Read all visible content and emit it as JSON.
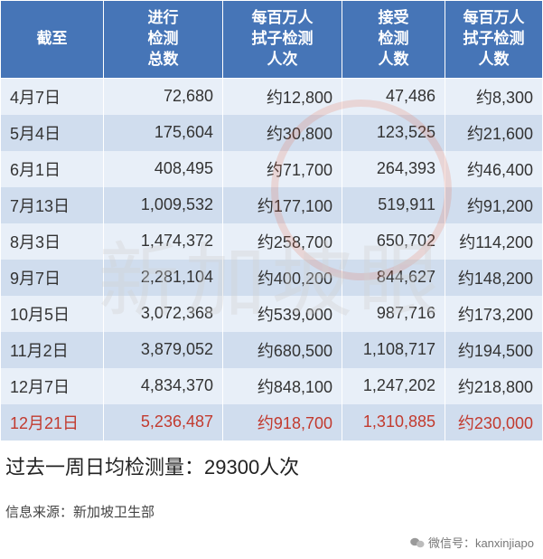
{
  "columns": [
    "截至",
    "进行\n检测\n总数",
    "每百万人\n拭子检测\n人次",
    "接受\n检测\n人数",
    "每百万人\n拭子检测\n人数"
  ],
  "rows": [
    {
      "date": "4月7日",
      "total": "72,680",
      "per_m_tests": "约12,800",
      "people": "47,486",
      "per_m_people": "约8,300",
      "stripe": "odd"
    },
    {
      "date": "5月4日",
      "total": "175,604",
      "per_m_tests": "约30,800",
      "people": "123,525",
      "per_m_people": "约21,600",
      "stripe": "even"
    },
    {
      "date": "6月1日",
      "total": "408,495",
      "per_m_tests": "约71,700",
      "people": "264,393",
      "per_m_people": "约46,400",
      "stripe": "odd"
    },
    {
      "date": "7月13日",
      "total": "1,009,532",
      "per_m_tests": "约177,100",
      "people": "519,911",
      "per_m_people": "约91,200",
      "stripe": "even"
    },
    {
      "date": "8月3日",
      "total": "1,474,372",
      "per_m_tests": "约258,700",
      "people": "650,702",
      "per_m_people": "约114,200",
      "stripe": "odd"
    },
    {
      "date": "9月7日",
      "total": "2,281,104",
      "per_m_tests": "约400,200",
      "people": "844,627",
      "per_m_people": "约148,200",
      "stripe": "even"
    },
    {
      "date": "10月5日",
      "total": "3,072,368",
      "per_m_tests": "约539,000",
      "people": "987,716",
      "per_m_people": "约173,200",
      "stripe": "odd"
    },
    {
      "date": "11月2日",
      "total": "3,879,052",
      "per_m_tests": "约680,500",
      "people": "1,108,717",
      "per_m_people": "约194,500",
      "stripe": "even"
    },
    {
      "date": "12月7日",
      "total": "4,834,370",
      "per_m_tests": "约848,100",
      "people": "1,247,202",
      "per_m_people": "约218,800",
      "stripe": "odd"
    },
    {
      "date": "12月21日",
      "total": "5,236,487",
      "per_m_tests": "约918,700",
      "people": "1,310,885",
      "per_m_people": "约230,000",
      "stripe": "even",
      "highlight": true
    }
  ],
  "subtitle": "过去一周日均检测量：29300人次",
  "source_line": "信息来源：新加坡卫生部",
  "watermark_text": "新加坡眼",
  "footer_label": "微信号：",
  "footer_value": "kanxinjiapo",
  "colors": {
    "header_bg": "#4675b7",
    "header_text": "#ffffff",
    "row_odd": "#e8eff8",
    "row_even": "#d0ddee",
    "highlight_text": "#c23a2e",
    "body_text": "#333333"
  },
  "column_widths_pct": [
    19,
    22,
    22,
    19,
    22
  ],
  "font_sizes": {
    "header": 17,
    "cell": 18,
    "subtitle": 22,
    "source": 15,
    "footer": 13
  }
}
